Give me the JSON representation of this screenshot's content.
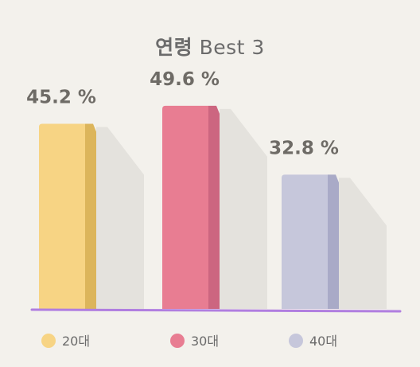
{
  "title": {
    "strong": "연령",
    "light": "Best 3"
  },
  "chart_data": {
    "type": "bar",
    "title": "연령 Best 3",
    "categories": [
      "20대",
      "30대",
      "40대"
    ],
    "values": [
      45.2,
      49.6,
      32.8
    ],
    "value_labels": [
      "45.2 %",
      "49.6 %",
      "32.8 %"
    ],
    "ylim": [
      0,
      70
    ],
    "grid": false,
    "legend": "bottom",
    "colors": {
      "front": [
        "#f7d484",
        "#e87d92",
        "#c6c7db"
      ],
      "side": [
        "#dcb55b",
        "#cc6680",
        "#a9aac7"
      ],
      "shadow": "#e4e2dd",
      "baseline": "#b07ee0"
    }
  }
}
